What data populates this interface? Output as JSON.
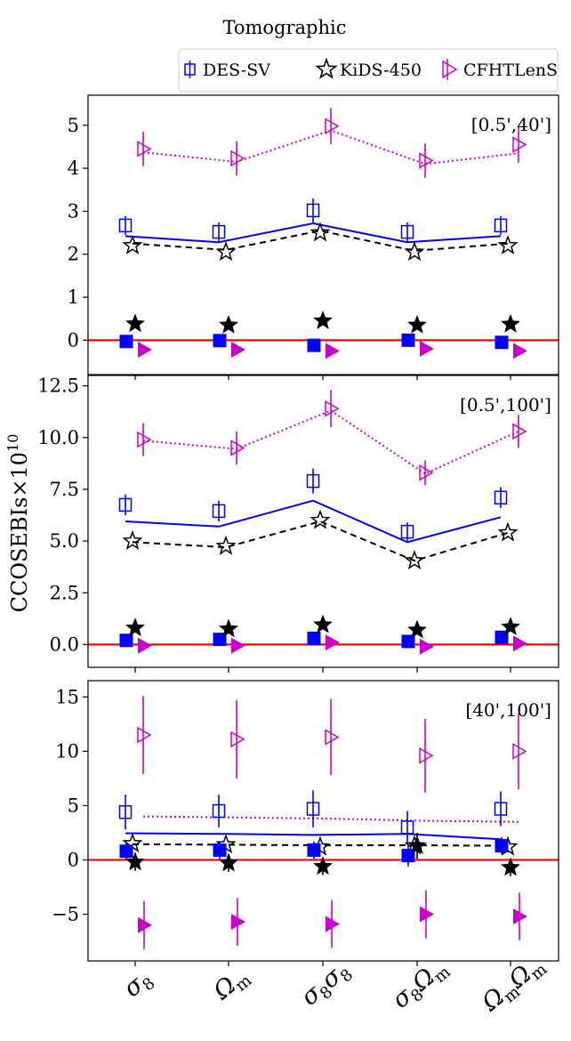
{
  "figure": {
    "title": "Tomographic",
    "ylabel_main": "CCOSEBIs×10",
    "ylabel_exp": "10"
  },
  "legend": [
    {
      "name": "DES-SV",
      "marker": "square",
      "color": "#0000ff"
    },
    {
      "name": "KiDS-450",
      "marker": "star",
      "color": "#000000"
    },
    {
      "name": "CFHTLenS",
      "marker": "triangle",
      "color": "#cc00cc"
    }
  ],
  "colors": {
    "des": "#0000ff",
    "kids": "#000000",
    "cfht": "#cc00cc",
    "zero": "#ff0000"
  },
  "categories": [
    {
      "main": "σ",
      "sub": "8",
      "main2": "",
      "sub2": ""
    },
    {
      "main": "Ω",
      "sub": "m",
      "main2": "",
      "sub2": ""
    },
    {
      "main": "σ",
      "sub": "8",
      "main2": "σ",
      "sub2": "8"
    },
    {
      "main": "σ",
      "sub": "8",
      "main2": "Ω",
      "sub2": "m"
    },
    {
      "main": "Ω",
      "sub": "m",
      "main2": "Ω",
      "sub2": "m"
    }
  ],
  "chart_data": [
    {
      "type": "scatter",
      "label": "[0.5',40']",
      "ylim": [
        -0.8,
        5.7
      ],
      "yticks": [
        0,
        1,
        2,
        3,
        4,
        5
      ],
      "ytick_labels": [
        "0",
        "1",
        "2",
        "3",
        "4",
        "5"
      ],
      "series": [
        {
          "key": "des_open",
          "name": "DES-SV",
          "marker": "square-open",
          "values": [
            2.67,
            2.52,
            3.02,
            2.52,
            2.67
          ],
          "err": [
            0.22,
            0.22,
            0.28,
            0.22,
            0.22
          ]
        },
        {
          "key": "kids_open",
          "name": "KiDS-450",
          "marker": "star-open",
          "values": [
            2.2,
            2.05,
            2.5,
            2.05,
            2.2
          ],
          "err": [
            0.0,
            0.0,
            0.0,
            0.0,
            0.0
          ]
        },
        {
          "key": "cfht_open",
          "name": "CFHTLenS",
          "marker": "triangle-open",
          "values": [
            4.45,
            4.23,
            4.98,
            4.18,
            4.55
          ],
          "err": [
            0.4,
            0.4,
            0.42,
            0.4,
            0.42
          ]
        },
        {
          "key": "des_line",
          "name": "DES-SV model",
          "style": "solid",
          "values": [
            2.42,
            2.28,
            2.72,
            2.28,
            2.42
          ]
        },
        {
          "key": "kids_line",
          "name": "KiDS-450 model",
          "style": "dashed",
          "values": [
            2.25,
            2.1,
            2.55,
            2.08,
            2.25
          ]
        },
        {
          "key": "cfht_line",
          "name": "CFHTLenS model",
          "style": "dotted",
          "values": [
            4.37,
            4.15,
            4.88,
            4.1,
            4.35
          ]
        },
        {
          "key": "des_fill",
          "name": "DES-SV B-mode",
          "marker": "square-filled",
          "values": [
            -0.03,
            -0.01,
            -0.12,
            0.0,
            -0.05
          ]
        },
        {
          "key": "kids_fill",
          "name": "KiDS-450 B-mode",
          "marker": "star-filled",
          "values": [
            0.38,
            0.35,
            0.45,
            0.35,
            0.37
          ]
        },
        {
          "key": "cfht_fill",
          "name": "CFHTLenS B-mode",
          "marker": "triangle-filled",
          "values": [
            -0.22,
            -0.22,
            -0.25,
            -0.2,
            -0.25
          ]
        }
      ]
    },
    {
      "type": "scatter",
      "label": "[0.5',100']",
      "ylim": [
        -1.1,
        13.0
      ],
      "yticks": [
        0,
        2.5,
        5,
        7.5,
        10,
        12.5
      ],
      "ytick_labels": [
        "0.0",
        "2.5",
        "5.0",
        "7.5",
        "10.0",
        "12.5"
      ],
      "series": [
        {
          "key": "des_open",
          "name": "DES-SV",
          "marker": "square-open",
          "values": [
            6.75,
            6.45,
            7.9,
            5.45,
            7.1
          ],
          "err": [
            0.5,
            0.5,
            0.6,
            0.45,
            0.5
          ]
        },
        {
          "key": "kids_open",
          "name": "KiDS-450",
          "marker": "star-open",
          "values": [
            5.0,
            4.75,
            6.0,
            4.05,
            5.4
          ],
          "err": [
            0.0,
            0.0,
            0.0,
            0.0,
            0.0
          ]
        },
        {
          "key": "cfht_open",
          "name": "CFHTLenS",
          "marker": "triangle-open",
          "values": [
            9.9,
            9.5,
            11.4,
            8.3,
            10.3
          ],
          "err": [
            0.8,
            0.8,
            0.9,
            0.6,
            0.8
          ]
        },
        {
          "key": "des_line",
          "name": "DES-SV model",
          "style": "solid",
          "values": [
            5.95,
            5.7,
            6.95,
            4.95,
            6.15
          ]
        },
        {
          "key": "kids_line",
          "name": "KiDS-450 model",
          "style": "dashed",
          "values": [
            4.95,
            4.7,
            5.95,
            4.05,
            5.4
          ]
        },
        {
          "key": "cfht_line",
          "name": "CFHTLenS model",
          "style": "dotted",
          "values": [
            9.85,
            9.45,
            11.3,
            8.25,
            10.3
          ]
        },
        {
          "key": "des_fill",
          "name": "DES-SV B-mode",
          "marker": "square-filled",
          "values": [
            0.2,
            0.25,
            0.3,
            0.15,
            0.35
          ]
        },
        {
          "key": "kids_fill",
          "name": "KiDS-450 B-mode",
          "marker": "star-filled",
          "values": [
            0.8,
            0.75,
            0.95,
            0.7,
            0.85
          ]
        },
        {
          "key": "cfht_fill",
          "name": "CFHTLenS B-mode",
          "marker": "triangle-filled",
          "values": [
            -0.05,
            -0.05,
            0.1,
            -0.1,
            0.05
          ]
        }
      ]
    },
    {
      "type": "scatter",
      "label": "[40',100']",
      "ylim": [
        -9.3,
        16.5
      ],
      "yticks": [
        -5,
        0,
        5,
        10,
        15
      ],
      "ytick_labels": [
        "−5",
        "0",
        "5",
        "10",
        "15"
      ],
      "series": [
        {
          "key": "des_open",
          "name": "DES-SV",
          "marker": "square-open",
          "values": [
            4.4,
            4.5,
            4.7,
            3.0,
            4.7
          ],
          "err": [
            1.6,
            1.5,
            1.7,
            1.5,
            1.6
          ]
        },
        {
          "key": "kids_open",
          "name": "KiDS-450",
          "marker": "star-open",
          "values": [
            1.5,
            1.4,
            1.2,
            1.3,
            1.2
          ],
          "err": [
            0.0,
            0.0,
            0.0,
            0.0,
            0.0
          ]
        },
        {
          "key": "cfht_open",
          "name": "CFHTLenS",
          "marker": "triangle-open",
          "values": [
            11.5,
            11.1,
            11.3,
            9.6,
            10.0
          ],
          "err": [
            3.6,
            3.6,
            3.5,
            3.4,
            3.5
          ]
        },
        {
          "key": "des_line",
          "name": "DES-SV model",
          "style": "solid",
          "values": [
            2.45,
            2.4,
            2.3,
            2.4,
            1.9
          ]
        },
        {
          "key": "kids_line",
          "name": "KiDS-450 model",
          "style": "dashed",
          "values": [
            1.45,
            1.4,
            1.35,
            1.35,
            1.3
          ]
        },
        {
          "key": "cfht_line",
          "name": "CFHTLenS model",
          "style": "dotted",
          "values": [
            4.0,
            3.9,
            3.8,
            3.6,
            3.5
          ]
        },
        {
          "key": "des_fill",
          "name": "DES-SV B-mode",
          "marker": "square-filled",
          "values": [
            0.8,
            0.9,
            0.9,
            0.4,
            1.3
          ],
          "err": [
            0.8,
            0.8,
            0.8,
            1.0,
            0.8
          ]
        },
        {
          "key": "kids_fill",
          "name": "KiDS-450 B-mode",
          "marker": "star-filled",
          "values": [
            -0.2,
            -0.3,
            -0.6,
            1.3,
            -0.7
          ],
          "err": [
            0.8,
            0.8,
            0.8,
            1.2,
            0.8
          ]
        },
        {
          "key": "cfht_fill",
          "name": "CFHTLenS B-mode",
          "marker": "triangle-filled",
          "values": [
            -6.0,
            -5.7,
            -5.9,
            -5.0,
            -5.2
          ],
          "err": [
            2.2,
            2.2,
            2.2,
            2.2,
            2.2
          ]
        }
      ]
    }
  ]
}
